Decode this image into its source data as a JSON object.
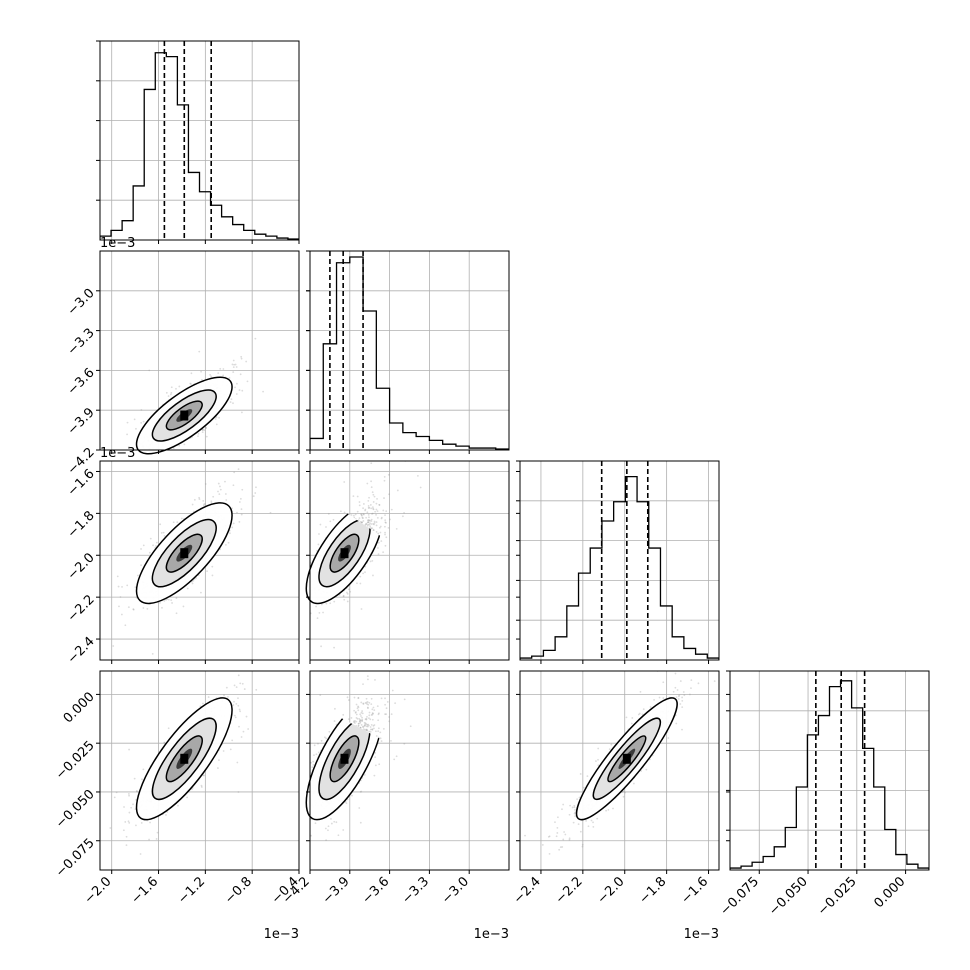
{
  "chart_data": {
    "type": "corner",
    "grid": true,
    "quantile_lines": "dashed",
    "parameters": [
      {
        "range": [
          -2.1,
          -0.4
        ],
        "ticks": [
          -2.0,
          -1.6,
          -1.2,
          -0.8,
          -0.4
        ],
        "tick_labels": [
          "−2.0",
          "−1.6",
          "−1.2",
          "−0.8",
          "−0.4"
        ],
        "offset": "1e−3",
        "hist": [
          0.02,
          0.05,
          0.1,
          0.28,
          0.78,
          0.97,
          0.95,
          0.7,
          0.35,
          0.25,
          0.18,
          0.12,
          0.08,
          0.05,
          0.03,
          0.02,
          0.01,
          0.005
        ],
        "quantiles": [
          -1.55,
          -1.38,
          -1.15
        ],
        "mean": [
          -1.38
        ],
        "std": [
          0.17
        ]
      },
      {
        "range": [
          -4.2,
          -2.7
        ],
        "ticks": [
          -4.2,
          -3.9,
          -3.6,
          -3.3,
          -3.0
        ],
        "tick_labels": [
          "−4.2",
          "−3.9",
          "−3.6",
          "−3.3",
          "−3.0"
        ],
        "offset": "1e−3",
        "hist": [
          0.06,
          0.55,
          0.97,
          1.0,
          0.72,
          0.32,
          0.14,
          0.09,
          0.07,
          0.05,
          0.03,
          0.02,
          0.01,
          0.01,
          0.005
        ],
        "quantiles": [
          -4.05,
          -3.95,
          -3.8
        ],
        "mean": [
          -3.94
        ],
        "std": [
          0.12
        ]
      },
      {
        "range": [
          -2.5,
          -1.55
        ],
        "ticks": [
          -2.4,
          -2.2,
          -2.0,
          -1.8,
          -1.6
        ],
        "tick_labels": [
          "−2.4",
          "−2.2",
          "−2.0",
          "−1.8",
          "−1.6"
        ],
        "offset": "1e−3",
        "hist": [
          0.01,
          0.02,
          0.05,
          0.12,
          0.28,
          0.45,
          0.58,
          0.72,
          0.82,
          0.95,
          0.82,
          0.58,
          0.28,
          0.12,
          0.06,
          0.03,
          0.01
        ],
        "quantiles": [
          -2.11,
          -1.99,
          -1.89
        ],
        "mean": [
          -1.99
        ],
        "std": [
          0.1
        ]
      },
      {
        "range": [
          -0.09,
          0.012
        ],
        "ticks": [
          -0.075,
          -0.05,
          -0.025,
          0.0
        ],
        "tick_labels": [
          "−0.075",
          "−0.050",
          "−0.025",
          "0.000"
        ],
        "offset": "",
        "hist": [
          0.01,
          0.02,
          0.04,
          0.07,
          0.12,
          0.22,
          0.43,
          0.7,
          0.8,
          0.95,
          0.98,
          0.84,
          0.63,
          0.43,
          0.21,
          0.08,
          0.03,
          0.01
        ],
        "quantiles": [
          -0.046,
          -0.033,
          -0.021
        ],
        "mean": [
          -0.033
        ],
        "std": [
          0.013
        ]
      }
    ],
    "correlations": [
      {
        "pair": [
          1,
          0
        ],
        "rho": 0.75
      },
      {
        "pair": [
          2,
          0
        ],
        "rho": 0.75
      },
      {
        "pair": [
          2,
          1
        ],
        "rho": 0.7
      },
      {
        "pair": [
          3,
          0
        ],
        "rho": 0.8
      },
      {
        "pair": [
          3,
          1
        ],
        "rho": 0.72
      },
      {
        "pair": [
          3,
          2
        ],
        "rho": 0.9
      }
    ]
  }
}
